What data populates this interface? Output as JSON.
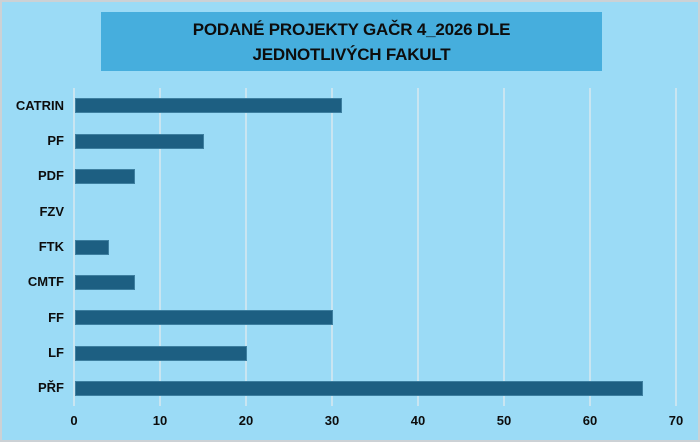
{
  "title": {
    "text": "PODANÉ PROJEKTY GAČR 4_2026 DLE JEDNOTLIVÝCH FAKULT"
  },
  "chart_data": {
    "type": "bar",
    "orientation": "horizontal",
    "title": "PODANÉ PROJEKTY GAČR 4_2026 DLE JEDNOTLIVÝCH FAKULT",
    "categories": [
      "CATRIN",
      "PF",
      "PDF",
      "FZV",
      "FTK",
      "CMTF",
      "FF",
      "LF",
      "PŘF"
    ],
    "values": [
      31,
      15,
      7,
      0,
      4,
      7,
      30,
      20,
      66
    ],
    "xlabel": "",
    "ylabel": "",
    "xlim": [
      0,
      70
    ],
    "xticks": [
      0,
      10,
      20,
      30,
      40,
      50,
      60,
      70
    ],
    "grid": true,
    "legend": false
  },
  "colors": {
    "background": "#9bdbf6",
    "banner": "#46aedd",
    "bar_fill": "#1d5f82",
    "bar_border": "#3d7fa0",
    "gridline": "#c9e5f1",
    "text": "#0d0d0d"
  }
}
